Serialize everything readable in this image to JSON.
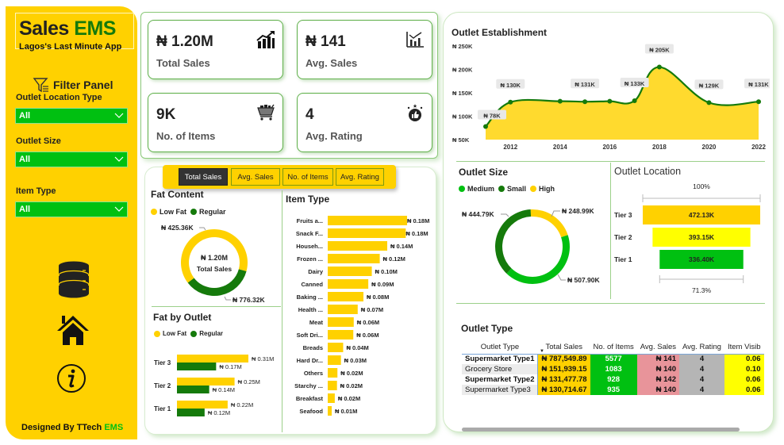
{
  "app": {
    "title_part1": "Sales",
    "title_part2": "EMS",
    "subtitle": "Lagos's Last Minute App",
    "designed_by_prefix": "Designed By ",
    "designed_by_name": "TTech",
    "designed_by_suffix": " EMS"
  },
  "filters": {
    "header": "Filter Panel",
    "items": [
      {
        "label": "Outlet Location Type",
        "value": "All"
      },
      {
        "label": "Outlet Size",
        "value": "All"
      },
      {
        "label": "Item Type",
        "value": "All"
      }
    ]
  },
  "sidebar_icons": [
    "database-icon",
    "home-icon",
    "info-icon"
  ],
  "kpis": [
    {
      "value": "₦ 1.20M",
      "label": "Total Sales",
      "icon": "growth-chart-icon"
    },
    {
      "value": "₦ 141",
      "label": "Avg. Sales",
      "icon": "bar-chart-icon"
    },
    {
      "value": "9K",
      "label": "No. of Items",
      "icon": "shopping-cart-icon"
    },
    {
      "value": "4",
      "label": "Avg. Rating",
      "icon": "thumbs-up-rating-icon"
    }
  ],
  "tabs": [
    {
      "label": "Total Sales",
      "active": true
    },
    {
      "label": "Avg. Sales",
      "active": false
    },
    {
      "label": "No. of Items",
      "active": false
    },
    {
      "label": "Avg. Rating",
      "active": false
    }
  ],
  "colors": {
    "yellow": "#FFD100",
    "green_dark": "#157A0B",
    "green_bright": "#00C011",
    "area_fill": "#FFDA2E",
    "tier2_yellow": "#FFFF00",
    "pink": "#E8949A",
    "gray": "#B5B5B5"
  },
  "chart_data": [
    {
      "id": "outlet_establishment",
      "type": "area",
      "title": "Outlet Establishment",
      "x": [
        2011,
        2012,
        2014,
        2015,
        2016,
        2017,
        2018,
        2020,
        2022
      ],
      "values": [
        78,
        130,
        132,
        131,
        132,
        133,
        205,
        129,
        131
      ],
      "unit": "K",
      "data_labels": {
        "2011": "₦ 78K",
        "2012": "₦ 130K",
        "2015": "₦ 131K",
        "2017": "₦ 133K",
        "2018": "₦ 205K",
        "2020": "₦ 129K",
        "2022": "₦ 131K"
      },
      "ylim": [
        50,
        250
      ],
      "yticks": [
        "₦ 50K",
        "₦ 100K",
        "₦ 150K",
        "₦ 200K",
        "₦ 250K"
      ],
      "yticks_values": [
        50,
        100,
        150,
        200,
        250
      ],
      "xticks": [
        2012,
        2014,
        2016,
        2018,
        2020,
        2022
      ]
    },
    {
      "id": "fat_content",
      "type": "pie",
      "title": "Fat Content",
      "legend": [
        "Low Fat",
        "Regular"
      ],
      "values": [
        776.32,
        425.36
      ],
      "labels": [
        "₦ 776.32K",
        "₦ 425.36K"
      ],
      "center_value": "₦ 1.20M",
      "center_label": "Total Sales"
    },
    {
      "id": "item_type",
      "type": "bar",
      "title": "Item Type",
      "categories": [
        "Fruits a...",
        "Snack F...",
        "Househ...",
        "Frozen ...",
        "Dairy",
        "Canned",
        "Baking ...",
        "Health ...",
        "Meat",
        "Soft Dri...",
        "Breads",
        "Hard Dr...",
        "Others",
        "Starchy ...",
        "Breakfast",
        "Seafood"
      ],
      "values": [
        0.18,
        0.177,
        0.135,
        0.118,
        0.1,
        0.092,
        0.081,
        0.068,
        0.059,
        0.058,
        0.035,
        0.03,
        0.022,
        0.021,
        0.016,
        0.009
      ],
      "labels": [
        "₦ 0.18M",
        "₦ 0.18M",
        "₦ 0.14M",
        "₦ 0.12M",
        "₦ 0.10M",
        "₦ 0.09M",
        "₦ 0.08M",
        "₦ 0.07M",
        "₦ 0.06M",
        "₦ 0.06M",
        "₦ 0.04M",
        "₦ 0.03M",
        "₦ 0.02M",
        "₦ 0.02M",
        "₦ 0.02M",
        "₦ 0.01M"
      ]
    },
    {
      "id": "fat_by_outlet",
      "type": "bar",
      "title": "Fat by Outlet",
      "categories": [
        "Tier 3",
        "Tier 2",
        "Tier 1"
      ],
      "series": [
        {
          "name": "Low Fat",
          "values": [
            0.31,
            0.25,
            0.22
          ],
          "labels": [
            "₦ 0.31M",
            "₦ 0.25M",
            "₦ 0.22M"
          ]
        },
        {
          "name": "Regular",
          "values": [
            0.17,
            0.14,
            0.12
          ],
          "labels": [
            "₦ 0.17M",
            "₦ 0.14M",
            "₦ 0.12M"
          ]
        }
      ]
    },
    {
      "id": "outlet_size",
      "type": "pie",
      "title": "Outlet Size",
      "legend": [
        "Medium",
        "Small",
        "High"
      ],
      "values": [
        507.9,
        444.79,
        248.99
      ],
      "labels": [
        "₦ 507.90K",
        "₦ 444.79K",
        "₦ 248.99K"
      ]
    },
    {
      "id": "outlet_location",
      "type": "bar",
      "subtype": "funnel",
      "title": "Outlet Location",
      "categories": [
        "Tier 3",
        "Tier 2",
        "Tier 1"
      ],
      "values": [
        472.13,
        393.15,
        336.4
      ],
      "labels": [
        "472.13K",
        "393.15K",
        "336.40K"
      ],
      "top_percent": "100%",
      "bottom_percent": "71.3%"
    }
  ],
  "outlet_type_table": {
    "title": "Outlet Type",
    "columns": [
      "Outlet Type",
      "Total Sales",
      "No. of Items",
      "Avg. Sales",
      "Avg. Rating",
      "Item Visib"
    ],
    "sorted_column": "Total Sales",
    "rows": [
      [
        "Supermarket Type1",
        "₦ 787,549.89",
        "5577",
        "₦ 141",
        "4",
        "0.06"
      ],
      [
        "Grocery Store",
        "₦ 151,939.15",
        "1083",
        "₦ 140",
        "4",
        "0.10"
      ],
      [
        "Supermarket Type2",
        "₦ 131,477.78",
        "928",
        "₦ 142",
        "4",
        "0.06"
      ],
      [
        "Supermarket Type3",
        "₦ 130,714.67",
        "935",
        "₦ 140",
        "4",
        "0.06"
      ]
    ]
  }
}
